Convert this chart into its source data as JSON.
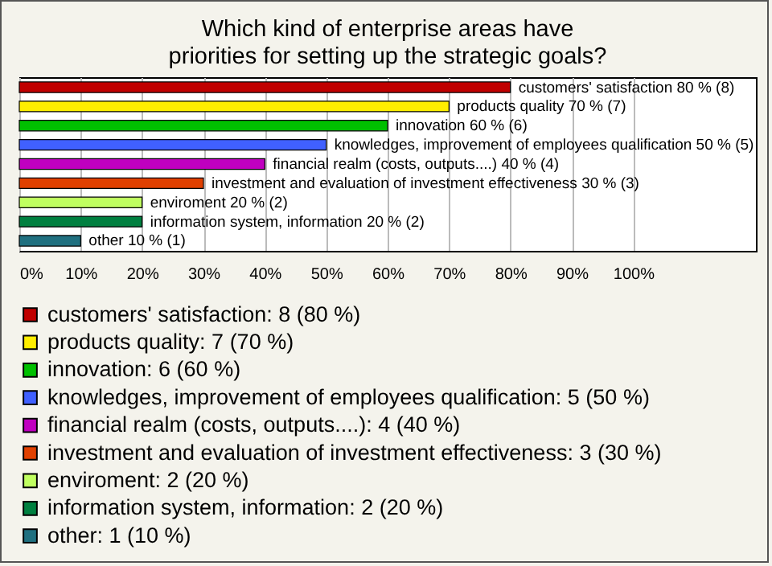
{
  "chart_data": {
    "type": "bar",
    "orientation": "horizontal",
    "title": "Which kind of enterprise areas have priorities for setting up the strategic goals?",
    "categories": [
      null,
      null,
      null,
      null,
      null,
      null,
      null,
      null,
      null
    ],
    "series": [
      {
        "name": "customers' satisfaction: 8 (80 %)",
        "color": "#c00000",
        "values": [
          80,
          null,
          null,
          null,
          null,
          null,
          null,
          null,
          null
        ],
        "value_labels": [
          "customers' satisfaction 80 % (8)",
          null,
          null,
          null,
          null,
          null,
          null,
          null,
          null
        ]
      },
      {
        "name": "products quality: 7 (70 %)",
        "color": "#ffee00",
        "values": [
          null,
          70,
          null,
          null,
          null,
          null,
          null,
          null,
          null
        ],
        "value_labels": [
          null,
          "products quality 70 % (7)",
          null,
          null,
          null,
          null,
          null,
          null,
          null
        ]
      },
      {
        "name": "innovation: 6 (60 %)",
        "color": "#00c000",
        "values": [
          null,
          null,
          60,
          null,
          null,
          null,
          null,
          null,
          null
        ],
        "value_labels": [
          null,
          null,
          "innovation 60 % (6)",
          null,
          null,
          null,
          null,
          null,
          null
        ]
      },
      {
        "name": "knowledges, improvement of employees qualification: 5 (50 %)",
        "color": "#4060ff",
        "values": [
          null,
          null,
          null,
          50,
          null,
          null,
          null,
          null,
          null
        ],
        "value_labels": [
          null,
          null,
          null,
          "knowledges, improvement of employees qualification 50 % (5)",
          null,
          null,
          null,
          null,
          null
        ]
      },
      {
        "name": "financial realm (costs, outputs....): 4 (40 %)",
        "color": "#c000c0",
        "values": [
          null,
          null,
          null,
          null,
          40,
          null,
          null,
          null,
          null
        ],
        "value_labels": [
          null,
          null,
          null,
          null,
          "financial realm (costs, outputs....) 40 % (4)",
          null,
          null,
          null,
          null
        ]
      },
      {
        "name": "investment and evaluation of investment effectiveness: 3 (30 %)",
        "color": "#e04000",
        "values": [
          null,
          null,
          null,
          null,
          null,
          30,
          null,
          null,
          null
        ],
        "value_labels": [
          null,
          null,
          null,
          null,
          null,
          "investment and evaluation of investment effectiveness 30 % (3)",
          null,
          null,
          null
        ]
      },
      {
        "name": "enviroment: 2 (20 %)",
        "color": "#c0ff60",
        "values": [
          null,
          null,
          null,
          null,
          null,
          null,
          20,
          null,
          null
        ],
        "value_labels": [
          null,
          null,
          null,
          null,
          null,
          null,
          "enviroment 20 % (2)",
          null,
          null
        ]
      },
      {
        "name": "information system, information: 2 (20 %)",
        "color": "#008040",
        "values": [
          null,
          null,
          null,
          null,
          null,
          null,
          null,
          20,
          null
        ],
        "value_labels": [
          null,
          null,
          null,
          null,
          null,
          null,
          null,
          "information system, information 20 % (2)",
          null
        ]
      },
      {
        "name": "other: 1 (10 %)",
        "color": "#207080",
        "values": [
          null,
          null,
          null,
          null,
          null,
          null,
          null,
          null,
          10
        ],
        "value_labels": [
          null,
          null,
          null,
          null,
          null,
          null,
          null,
          null,
          "other 10 % (1)"
        ]
      }
    ],
    "xlim": [
      0,
      120
    ],
    "xticks": [
      {
        "value": 0,
        "label": "0%"
      },
      {
        "value": 10,
        "label": "10%"
      },
      {
        "value": 20,
        "label": "20%"
      },
      {
        "value": 30,
        "label": "30%"
      },
      {
        "value": 40,
        "label": "40%"
      },
      {
        "value": 50,
        "label": "50%"
      },
      {
        "value": 60,
        "label": "60%"
      },
      {
        "value": 70,
        "label": "70%"
      },
      {
        "value": 80,
        "label": "80%"
      },
      {
        "value": 90,
        "label": "90%"
      },
      {
        "value": 100,
        "label": "100%"
      }
    ],
    "grid": true,
    "legend": "bottom",
    "tick_labels": "x"
  }
}
